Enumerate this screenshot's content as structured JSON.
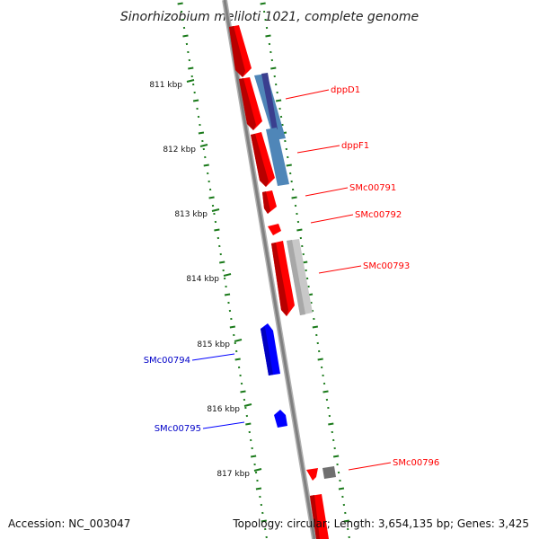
{
  "title": "Sinorhizobium meliloti 1021, complete genome",
  "footer": {
    "accession": "Accession: NC_003047",
    "summary": "Topology: circular; Length: 3,654,135 bp; Genes: 3,425"
  },
  "colors": {
    "forward": "#ff0000",
    "reverse": "#0000ff",
    "backbone": "#808080",
    "ticks": "#1a7a1a",
    "feature_dark": "#3a3f8f",
    "feature_steel": "#4f86b8",
    "feature_grey": "#c8c8c8",
    "feature_darkgrey": "#707070"
  },
  "axis_labels": [
    "811 kbp",
    "812 kbp",
    "813 kbp",
    "814 kbp",
    "815 kbp",
    "816 kbp",
    "817 kbp"
  ],
  "genes": [
    {
      "name": "dppD1",
      "strand": "forward"
    },
    {
      "name": "dppF1",
      "strand": "forward"
    },
    {
      "name": "SMc00791",
      "strand": "forward"
    },
    {
      "name": "SMc00792",
      "strand": "forward"
    },
    {
      "name": "SMc00793",
      "strand": "forward"
    },
    {
      "name": "SMc00794",
      "strand": "reverse"
    },
    {
      "name": "SMc00795",
      "strand": "reverse"
    },
    {
      "name": "SMc00796",
      "strand": "forward"
    }
  ]
}
